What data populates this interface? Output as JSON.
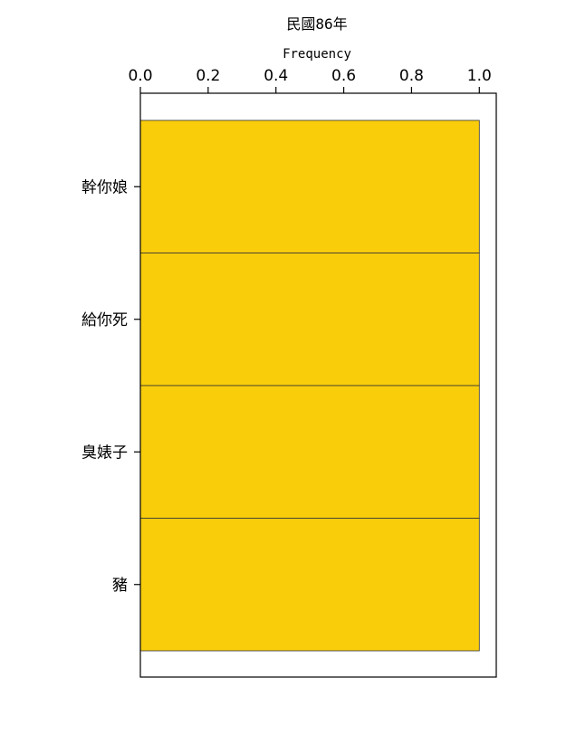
{
  "chart_data": {
    "type": "bar",
    "orientation": "horizontal",
    "title": "民國86年",
    "xlabel": "Frequency",
    "ylabel": "",
    "categories": [
      "幹你娘",
      "給你死",
      "臭婊子",
      "豬"
    ],
    "values": [
      1.0,
      1.0,
      1.0,
      1.0
    ],
    "xlim": [
      0.0,
      1.05
    ],
    "x_ticks": [
      0.0,
      0.2,
      0.4,
      0.6,
      0.8,
      1.0
    ],
    "x_tick_labels": [
      "0.0",
      "0.2",
      "0.4",
      "0.6",
      "0.8",
      "1.0"
    ],
    "x_axis_position": "top",
    "grid": false,
    "legend": "none",
    "bar_color": "#facd0b",
    "bar_edge_color": "#333333"
  }
}
